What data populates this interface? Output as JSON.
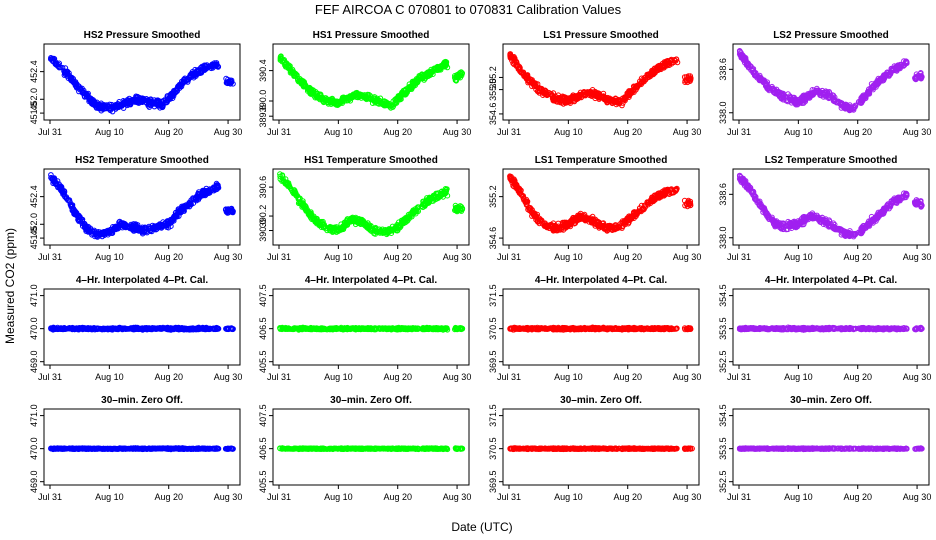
{
  "title": "FEF   AIRCOA C   070801 to 070831   Calibration Values",
  "xlabel": "Date (UTC)",
  "ylabel": "Measured CO2 (ppm)",
  "chart_data": {
    "type": "scatter",
    "x_range_days": [
      0,
      31
    ],
    "x_ticks": [
      {
        "day": 0,
        "label": "Jul 31"
      },
      {
        "day": 10,
        "label": "Aug 10"
      },
      {
        "day": 20,
        "label": "Aug 20"
      },
      {
        "day": 30,
        "label": "Aug 30"
      }
    ],
    "data_gaps": [
      [
        28.4,
        29.6
      ]
    ],
    "rows": [
      {
        "row_title": "Pressure Smoothed",
        "panels": [
          {
            "title": "HS2 Pressure Smoothed",
            "color": "#0000ff",
            "ylim": [
              451.7,
              452.8
            ],
            "yticks": [
              "451.8",
              "452.0",
              "452.4"
            ],
            "ytick_values": [
              451.8,
              452.0,
              452.4
            ],
            "curve": [
              [
                0,
                452.6
              ],
              [
                2,
                452.45
              ],
              [
                5,
                452.15
              ],
              [
                8,
                451.9
              ],
              [
                10,
                451.87
              ],
              [
                13,
                451.95
              ],
              [
                15,
                452.0
              ],
              [
                17,
                451.95
              ],
              [
                19,
                451.92
              ],
              [
                21,
                452.1
              ],
              [
                23,
                452.3
              ],
              [
                26,
                452.45
              ],
              [
                28.3,
                452.5
              ],
              [
                29.7,
                452.25
              ],
              [
                30.8,
                452.25
              ]
            ]
          },
          {
            "title": "HS1 Pressure Smoothed",
            "color": "#00ff00",
            "ylim": [
              389.75,
              390.75
            ],
            "yticks": [
              "389.8",
              "390.0",
              "390.4"
            ],
            "ytick_values": [
              389.8,
              390.0,
              390.4
            ],
            "curve": [
              [
                0,
                390.6
              ],
              [
                2,
                390.4
              ],
              [
                5,
                390.15
              ],
              [
                8,
                390.0
              ],
              [
                10,
                389.98
              ],
              [
                13,
                390.08
              ],
              [
                15,
                390.05
              ],
              [
                17,
                389.98
              ],
              [
                19,
                389.95
              ],
              [
                21,
                390.1
              ],
              [
                23,
                390.25
              ],
              [
                26,
                390.4
              ],
              [
                28.3,
                390.5
              ],
              [
                29.7,
                390.3
              ],
              [
                30.8,
                390.35
              ]
            ]
          },
          {
            "title": "LS1 Pressure Smoothed",
            "color": "#ff0000",
            "ylim": [
              354.5,
              355.75
            ],
            "yticks": [
              "354.6",
              "355.0",
              "355.2"
            ],
            "ytick_values": [
              354.6,
              355.0,
              355.2
            ],
            "curve": [
              [
                0,
                355.6
              ],
              [
                2,
                355.3
              ],
              [
                5,
                355.0
              ],
              [
                8,
                354.85
              ],
              [
                10,
                354.82
              ],
              [
                13,
                354.95
              ],
              [
                15,
                354.9
              ],
              [
                17,
                354.82
              ],
              [
                19,
                354.8
              ],
              [
                21,
                355.0
              ],
              [
                23,
                355.2
              ],
              [
                26,
                355.4
              ],
              [
                28.3,
                355.5
              ],
              [
                29.7,
                355.15
              ],
              [
                30.8,
                355.2
              ]
            ]
          },
          {
            "title": "LS2 Pressure Smoothed",
            "color": "#a020f0",
            "ylim": [
              337.9,
              338.95
            ],
            "yticks": [
              "338.0",
              "338.6"
            ],
            "ytick_values": [
              338.0,
              338.6
            ],
            "curve": [
              [
                0,
                338.85
              ],
              [
                2,
                338.6
              ],
              [
                5,
                338.35
              ],
              [
                8,
                338.2
              ],
              [
                10,
                338.15
              ],
              [
                13,
                338.3
              ],
              [
                15,
                338.25
              ],
              [
                17,
                338.12
              ],
              [
                19,
                338.05
              ],
              [
                21,
                338.2
              ],
              [
                23,
                338.4
              ],
              [
                26,
                338.6
              ],
              [
                28.3,
                338.7
              ],
              [
                29.7,
                338.5
              ],
              [
                30.8,
                338.5
              ]
            ]
          }
        ]
      },
      {
        "row_title": "Temperature Smoothed",
        "panels": [
          {
            "title": "HS2 Temperature Smoothed",
            "color": "#0000ff",
            "ylim": [
              451.7,
              452.8
            ],
            "yticks": [
              "451.8",
              "452.0",
              "452.4"
            ],
            "ytick_values": [
              451.8,
              452.0,
              452.4
            ],
            "curve": [
              [
                0,
                452.7
              ],
              [
                2,
                452.5
              ],
              [
                4,
                452.2
              ],
              [
                6,
                451.95
              ],
              [
                8,
                451.85
              ],
              [
                10,
                451.9
              ],
              [
                12,
                452.0
              ],
              [
                14,
                451.95
              ],
              [
                16,
                451.92
              ],
              [
                18,
                451.95
              ],
              [
                20,
                452.0
              ],
              [
                22,
                452.2
              ],
              [
                24,
                452.35
              ],
              [
                26,
                452.45
              ],
              [
                28.3,
                452.55
              ],
              [
                29.7,
                452.2
              ],
              [
                30.8,
                452.2
              ]
            ]
          },
          {
            "title": "HS1 Temperature Smoothed",
            "color": "#00ff00",
            "ylim": [
              389.8,
              390.85
            ],
            "yticks": [
              "390.0",
              "390.2",
              "390.6"
            ],
            "ytick_values": [
              390.0,
              390.2,
              390.6
            ],
            "curve": [
              [
                0,
                390.75
              ],
              [
                2,
                390.6
              ],
              [
                4,
                390.35
              ],
              [
                6,
                390.15
              ],
              [
                8,
                390.05
              ],
              [
                10,
                390.0
              ],
              [
                12,
                390.15
              ],
              [
                14,
                390.12
              ],
              [
                16,
                390.0
              ],
              [
                18,
                389.98
              ],
              [
                20,
                390.05
              ],
              [
                22,
                390.2
              ],
              [
                24,
                390.35
              ],
              [
                26,
                390.45
              ],
              [
                28.3,
                390.55
              ],
              [
                29.7,
                390.3
              ],
              [
                30.8,
                390.3
              ]
            ]
          },
          {
            "title": "LS1 Temperature Smoothed",
            "color": "#ff0000",
            "ylim": [
              354.5,
              355.6
            ],
            "yticks": [
              "354.6",
              "355.2"
            ],
            "ytick_values": [
              354.6,
              355.2
            ],
            "curve": [
              [
                0,
                355.5
              ],
              [
                2,
                355.25
              ],
              [
                4,
                354.95
              ],
              [
                6,
                354.78
              ],
              [
                8,
                354.75
              ],
              [
                10,
                354.8
              ],
              [
                12,
                354.92
              ],
              [
                14,
                354.85
              ],
              [
                16,
                354.75
              ],
              [
                18,
                354.75
              ],
              [
                20,
                354.85
              ],
              [
                22,
                355.0
              ],
              [
                24,
                355.15
              ],
              [
                26,
                355.25
              ],
              [
                28.3,
                355.3
              ],
              [
                29.7,
                355.1
              ],
              [
                30.8,
                355.1
              ]
            ]
          },
          {
            "title": "LS2 Temperature Smoothed",
            "color": "#a020f0",
            "ylim": [
              337.9,
              338.95
            ],
            "yticks": [
              "338.0",
              "338.6"
            ],
            "ytick_values": [
              338.0,
              338.6
            ],
            "curve": [
              [
                0,
                338.85
              ],
              [
                2,
                338.65
              ],
              [
                4,
                338.4
              ],
              [
                6,
                338.2
              ],
              [
                8,
                338.15
              ],
              [
                10,
                338.2
              ],
              [
                12,
                338.3
              ],
              [
                14,
                338.25
              ],
              [
                16,
                338.15
              ],
              [
                18,
                338.05
              ],
              [
                20,
                338.05
              ],
              [
                22,
                338.2
              ],
              [
                24,
                338.35
              ],
              [
                26,
                338.5
              ],
              [
                28.3,
                338.6
              ],
              [
                29.7,
                338.5
              ],
              [
                30.8,
                338.45
              ]
            ]
          }
        ]
      },
      {
        "row_title": "4-Hr. Interpolated 4-Pt. Cal.",
        "panels": [
          {
            "title": "4–Hr. Interpolated 4–Pt. Cal.",
            "color": "#0000ff",
            "ylim": [
              468.9,
              471.2
            ],
            "yticks": [
              "469.0",
              "470.0",
              "471.0"
            ],
            "ytick_values": [
              469.0,
              470.0,
              471.0
            ],
            "flat": 470.0
          },
          {
            "title": "4–Hr. Interpolated 4–Pt. Cal.",
            "color": "#00ff00",
            "ylim": [
              405.4,
              407.7
            ],
            "yticks": [
              "405.5",
              "406.5",
              "407.5"
            ],
            "ytick_values": [
              405.5,
              406.5,
              407.5
            ],
            "flat": 406.5
          },
          {
            "title": "4–Hr. Interpolated 4–Pt. Cal.",
            "color": "#ff0000",
            "ylim": [
              369.4,
              371.7
            ],
            "yticks": [
              "369.5",
              "370.5",
              "371.5"
            ],
            "ytick_values": [
              369.5,
              370.5,
              371.5
            ],
            "flat": 370.5
          },
          {
            "title": "4–Hr. Interpolated 4–Pt. Cal.",
            "color": "#a020f0",
            "ylim": [
              352.4,
              354.7
            ],
            "yticks": [
              "352.5",
              "353.5",
              "354.5"
            ],
            "ytick_values": [
              352.5,
              353.5,
              354.5
            ],
            "flat": 353.5
          }
        ]
      },
      {
        "row_title": "30-min. Zero Off.",
        "panels": [
          {
            "title": "30–min. Zero Off.",
            "color": "#0000ff",
            "ylim": [
              468.9,
              471.2
            ],
            "yticks": [
              "469.0",
              "470.0",
              "471.0"
            ],
            "ytick_values": [
              469.0,
              470.0,
              471.0
            ],
            "flat": 470.0
          },
          {
            "title": "30–min. Zero Off.",
            "color": "#00ff00",
            "ylim": [
              405.4,
              407.7
            ],
            "yticks": [
              "405.5",
              "406.5",
              "407.5"
            ],
            "ytick_values": [
              405.5,
              406.5,
              407.5
            ],
            "flat": 406.5
          },
          {
            "title": "30–min. Zero Off.",
            "color": "#ff0000",
            "ylim": [
              369.4,
              371.7
            ],
            "yticks": [
              "369.5",
              "370.5",
              "371.5"
            ],
            "ytick_values": [
              369.5,
              370.5,
              371.5
            ],
            "flat": 370.5
          },
          {
            "title": "30–min. Zero Off.",
            "color": "#a020f0",
            "ylim": [
              352.4,
              354.7
            ],
            "yticks": [
              "352.5",
              "353.5",
              "354.5"
            ],
            "ytick_values": [
              352.5,
              353.5,
              354.5
            ],
            "flat": 353.5
          }
        ]
      }
    ]
  }
}
